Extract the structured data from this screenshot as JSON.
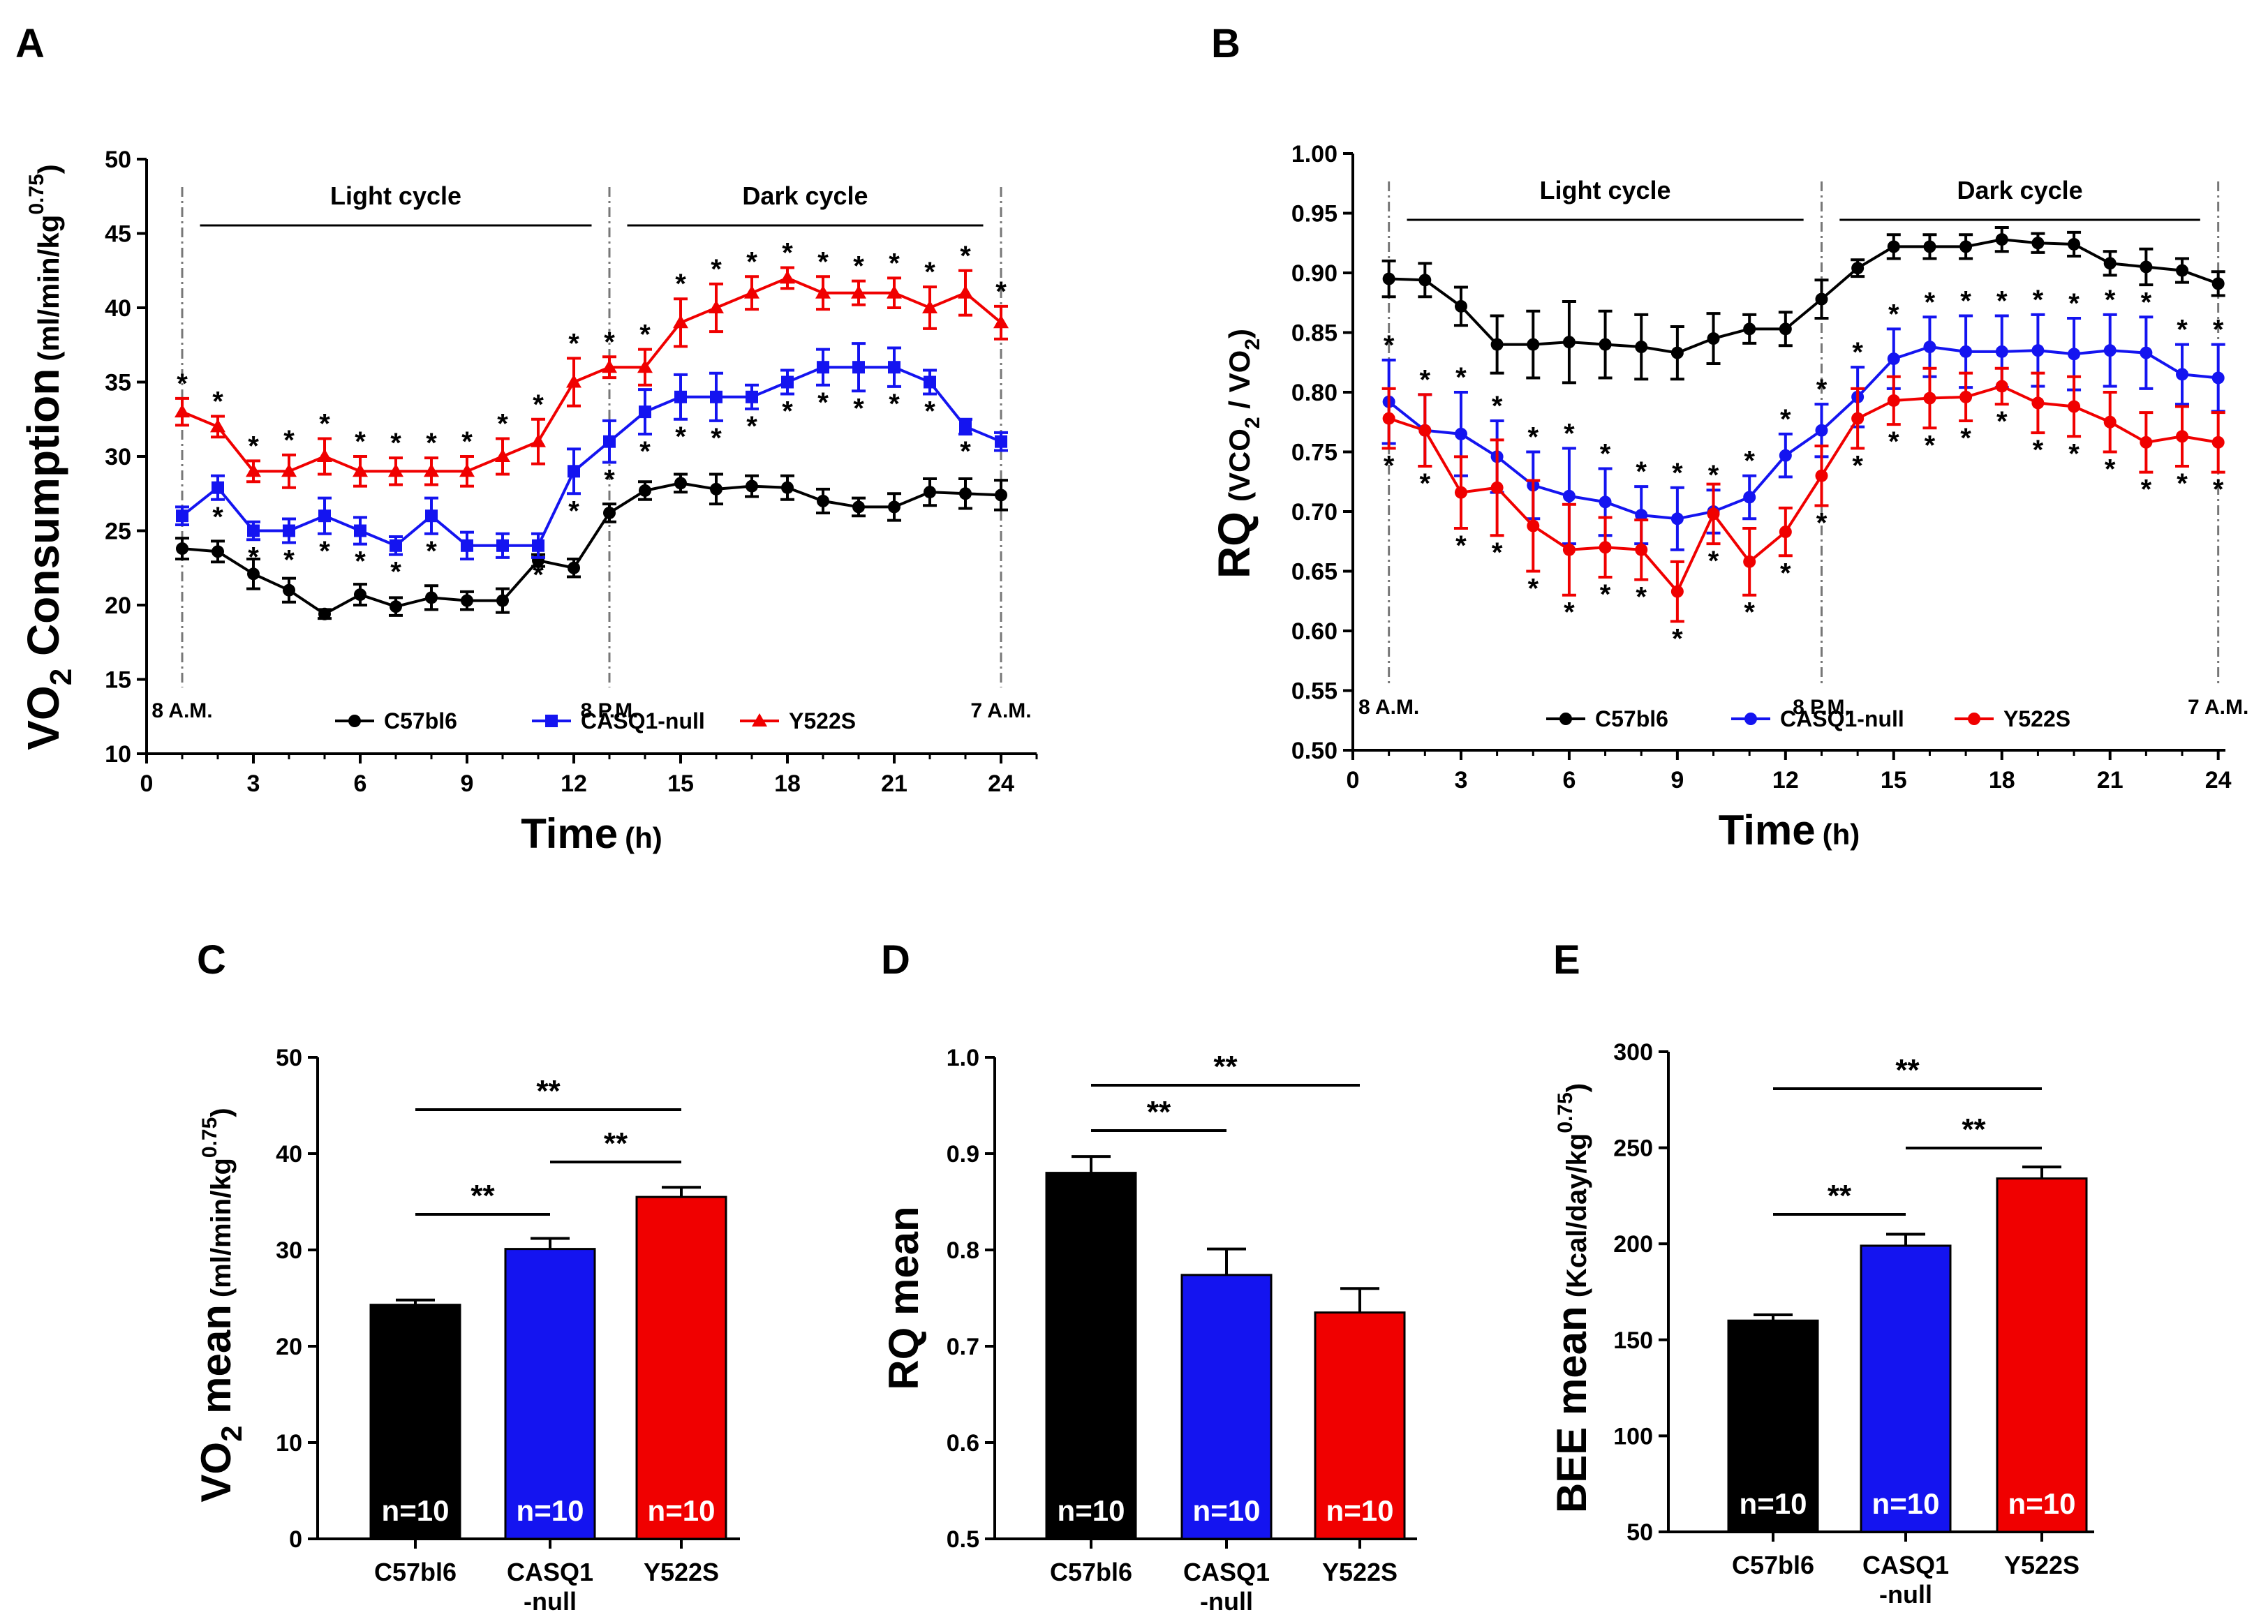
{
  "figure": {
    "colors": {
      "C57bl6": "#000000",
      "CASQ1-null": "#1414f0",
      "Y522S": "#f00000",
      "axis": "#000000"
    }
  },
  "chart_data": [
    {
      "panel": "A",
      "type": "line",
      "ylabel_main": "VO",
      "ylabel_sub": "2",
      "ylabel_rest": " Consumption",
      "ylabel_unit": "(ml/min/kg",
      "ylabel_unit_sup": "0.75",
      "ylabel_unit_close": ")",
      "xlabel": "Time",
      "xlabel_unit": "(h)",
      "xlim": [
        0,
        25
      ],
      "ylim": [
        10,
        50
      ],
      "xticks": [
        0,
        3,
        6,
        9,
        12,
        15,
        18,
        21,
        24
      ],
      "yticks": [
        10,
        15,
        20,
        25,
        30,
        35,
        40,
        45,
        50
      ],
      "cycle_labels": [
        {
          "text": "Light cycle",
          "x_range": [
            1.5,
            12.5
          ]
        },
        {
          "text": "Dark cycle",
          "x_range": [
            13.5,
            23.5
          ]
        }
      ],
      "time_markers": [
        {
          "text": "8 A.M.",
          "x": 1
        },
        {
          "text": "8 P.M.",
          "x": 13
        },
        {
          "text": "7 A.M.",
          "x": 24
        }
      ],
      "legend": [
        "C57bl6",
        "CASQ1-null",
        "Y522S"
      ],
      "x": [
        1,
        2,
        3,
        4,
        5,
        6,
        7,
        8,
        9,
        10,
        11,
        12,
        13,
        14,
        15,
        16,
        17,
        18,
        19,
        20,
        21,
        22,
        23,
        24
      ],
      "series": [
        {
          "name": "C57bl6",
          "marker": "circle",
          "values": [
            23.8,
            23.6,
            22.1,
            21.0,
            19.4,
            20.7,
            19.9,
            20.5,
            20.3,
            20.3,
            23.0,
            22.5,
            26.2,
            27.7,
            28.2,
            27.8,
            28.0,
            27.9,
            27.0,
            26.6,
            26.6,
            27.6,
            27.5,
            27.4
          ],
          "errors": [
            0.7,
            0.7,
            1.0,
            0.8,
            0.3,
            0.7,
            0.6,
            0.8,
            0.6,
            0.8,
            0.4,
            0.6,
            0.6,
            0.6,
            0.6,
            1.0,
            0.7,
            0.8,
            0.8,
            0.6,
            0.9,
            0.9,
            1.0,
            1.0
          ],
          "stars_below": []
        },
        {
          "name": "CASQ1-null",
          "marker": "square",
          "values": [
            26.0,
            27.9,
            25.0,
            25.0,
            26.0,
            25.0,
            24.0,
            26.0,
            24.0,
            24.0,
            24.0,
            29.0,
            31.0,
            33.0,
            34.0,
            34.0,
            34.0,
            35.0,
            36.0,
            36.0,
            36.0,
            35.0,
            32.0,
            31.0
          ],
          "errors": [
            0.6,
            0.8,
            0.6,
            0.8,
            1.2,
            0.9,
            0.6,
            1.2,
            0.9,
            0.8,
            0.8,
            1.5,
            1.4,
            1.5,
            1.5,
            1.6,
            0.8,
            0.8,
            1.2,
            1.6,
            1.3,
            0.8,
            0.5,
            0.6
          ],
          "stars_below": [
            2,
            3,
            4,
            5,
            6,
            7,
            8,
            11,
            12,
            13,
            14,
            15,
            16,
            17,
            18,
            19,
            20,
            21,
            22,
            23
          ]
        },
        {
          "name": "Y522S",
          "marker": "triangle",
          "values": [
            33.0,
            32.0,
            29.0,
            29.0,
            30.0,
            29.0,
            29.0,
            29.0,
            29.0,
            30.0,
            31.0,
            35.0,
            36.0,
            36.0,
            39.0,
            40.0,
            41.0,
            42.0,
            41.0,
            41.0,
            41.0,
            40.0,
            41.0,
            39.0
          ],
          "errors": [
            0.9,
            0.7,
            0.7,
            1.1,
            1.2,
            1.0,
            0.9,
            0.9,
            1.0,
            1.2,
            1.5,
            1.6,
            0.7,
            1.2,
            1.6,
            1.6,
            1.1,
            0.7,
            1.1,
            0.8,
            1.0,
            1.4,
            1.5,
            1.1
          ],
          "stars_above": [
            1,
            2,
            3,
            4,
            5,
            6,
            7,
            8,
            9,
            10,
            11,
            12,
            13,
            14,
            15,
            16,
            17,
            18,
            19,
            20,
            21,
            22,
            23,
            24
          ]
        }
      ]
    },
    {
      "panel": "B",
      "type": "line",
      "ylabel_main": "RQ",
      "ylabel_unit": "(VCO",
      "ylabel_unit_sub": "2",
      "ylabel_unit_mid": " / VO",
      "ylabel_unit_sub2": "2",
      "ylabel_unit_close": ")",
      "xlabel": "Time",
      "xlabel_unit": "(h)",
      "xlim": [
        0,
        24.2
      ],
      "ylim": [
        0.5,
        1.0
      ],
      "xticks": [
        0,
        3,
        6,
        9,
        12,
        15,
        18,
        21,
        24
      ],
      "yticks": [
        "0.50",
        "0.55",
        "0.60",
        "0.65",
        "0.70",
        "0.75",
        "0.80",
        "0.85",
        "0.90",
        "0.95",
        "1.00"
      ],
      "cycle_labels": [
        {
          "text": "Light cycle",
          "x_range": [
            1.5,
            12.5
          ]
        },
        {
          "text": "Dark cycle",
          "x_range": [
            13.5,
            23.5
          ]
        }
      ],
      "time_markers": [
        {
          "text": "8 A.M.",
          "x": 1
        },
        {
          "text": "8 P.M.",
          "x": 13
        },
        {
          "text": "7 A.M.",
          "x": 24
        }
      ],
      "legend": [
        "C57bl6",
        "CASQ1-null",
        "Y522S"
      ],
      "x": [
        1,
        2,
        3,
        4,
        5,
        6,
        7,
        8,
        9,
        10,
        11,
        12,
        13,
        14,
        15,
        16,
        17,
        18,
        19,
        20,
        21,
        22,
        23,
        24
      ],
      "series": [
        {
          "name": "C57bl6",
          "marker": "circle",
          "values": [
            0.895,
            0.894,
            0.872,
            0.84,
            0.84,
            0.842,
            0.84,
            0.838,
            0.833,
            0.845,
            0.853,
            0.853,
            0.878,
            0.904,
            0.922,
            0.922,
            0.922,
            0.928,
            0.925,
            0.924,
            0.908,
            0.905,
            0.902,
            0.891
          ],
          "errors": [
            0.015,
            0.014,
            0.016,
            0.024,
            0.028,
            0.034,
            0.028,
            0.027,
            0.022,
            0.021,
            0.012,
            0.014,
            0.016,
            0.007,
            0.01,
            0.01,
            0.01,
            0.01,
            0.008,
            0.01,
            0.01,
            0.015,
            0.01,
            0.01
          ],
          "stars_below": []
        },
        {
          "name": "CASQ1-null",
          "marker": "circle",
          "values": [
            0.792,
            0.768,
            0.765,
            0.746,
            0.722,
            0.713,
            0.708,
            0.697,
            0.694,
            0.7,
            0.712,
            0.747,
            0.768,
            0.796,
            0.828,
            0.838,
            0.834,
            0.834,
            0.835,
            0.832,
            0.835,
            0.833,
            0.815,
            0.812
          ],
          "errors": [
            0.035,
            0.03,
            0.035,
            0.03,
            0.028,
            0.04,
            0.028,
            0.024,
            0.026,
            0.018,
            0.018,
            0.018,
            0.022,
            0.025,
            0.025,
            0.025,
            0.03,
            0.03,
            0.03,
            0.03,
            0.03,
            0.03,
            0.025,
            0.028
          ],
          "stars_above": [
            1,
            2,
            3,
            4,
            5,
            6,
            7,
            8,
            9,
            10,
            11,
            12,
            13,
            14,
            15,
            16,
            17,
            18,
            19,
            20,
            21,
            22,
            23,
            24
          ]
        },
        {
          "name": "Y522S",
          "marker": "circle",
          "values": [
            0.778,
            0.768,
            0.716,
            0.72,
            0.688,
            0.668,
            0.67,
            0.668,
            0.633,
            0.698,
            0.658,
            0.683,
            0.73,
            0.778,
            0.793,
            0.795,
            0.796,
            0.805,
            0.791,
            0.788,
            0.775,
            0.758,
            0.763,
            0.758
          ],
          "errors": [
            0.025,
            0.03,
            0.03,
            0.04,
            0.038,
            0.038,
            0.025,
            0.025,
            0.025,
            0.025,
            0.028,
            0.02,
            0.025,
            0.025,
            0.02,
            0.025,
            0.02,
            0.015,
            0.025,
            0.025,
            0.025,
            0.025,
            0.025,
            0.025
          ],
          "stars_below": [
            1,
            2,
            3,
            4,
            5,
            6,
            7,
            8,
            9,
            10,
            11,
            12,
            13,
            14,
            15,
            16,
            17,
            18,
            19,
            20,
            21,
            22,
            23,
            24
          ]
        }
      ]
    },
    {
      "panel": "C",
      "type": "bar",
      "ylabel_main": "VO",
      "ylabel_sub": "2",
      "ylabel_rest": " mean",
      "ylabel_unit": "(ml/min/kg",
      "ylabel_unit_sup": "0.75",
      "ylabel_unit_close": ")",
      "ylim": [
        0,
        50
      ],
      "yticks": [
        0,
        10,
        20,
        30,
        40,
        50
      ],
      "categories": [
        "C57bl6",
        "CASQ1",
        "Y522S"
      ],
      "categories_line2": [
        "",
        "-null",
        ""
      ],
      "series_names": [
        "C57bl6",
        "CASQ1-null",
        "Y522S"
      ],
      "values": [
        24.3,
        30.1,
        35.5
      ],
      "errors": [
        0.5,
        1.1,
        1.0
      ],
      "n_labels": [
        "n=10",
        "n=10",
        "n=10"
      ],
      "significance": [
        {
          "from": 0,
          "to": 1,
          "label": "**"
        },
        {
          "from": 1,
          "to": 2,
          "label": "**"
        },
        {
          "from": 0,
          "to": 2,
          "label": "**"
        }
      ]
    },
    {
      "panel": "D",
      "type": "bar",
      "ylabel_main": "RQ mean",
      "ylim": [
        0.5,
        1.0
      ],
      "yticks": [
        "0.5",
        "0.6",
        "0.7",
        "0.8",
        "0.9",
        "1.0"
      ],
      "categories": [
        "C57bl6",
        "CASQ1",
        "Y522S"
      ],
      "categories_line2": [
        "",
        "-null",
        ""
      ],
      "series_names": [
        "C57bl6",
        "CASQ1-null",
        "Y522S"
      ],
      "values": [
        0.88,
        0.774,
        0.735
      ],
      "errors": [
        0.017,
        0.027,
        0.025
      ],
      "n_labels": [
        "n=10",
        "n=10",
        "n=10"
      ],
      "significance": [
        {
          "from": 0,
          "to": 1,
          "label": "**"
        },
        {
          "from": 0,
          "to": 2,
          "label": "**"
        }
      ]
    },
    {
      "panel": "E",
      "type": "bar",
      "ylabel_main": "BEE mean",
      "ylabel_unit": "(Kcal/day/kg",
      "ylabel_unit_sup": "0.75",
      "ylabel_unit_close": ")",
      "ylim": [
        50,
        300
      ],
      "yticks": [
        50,
        100,
        150,
        200,
        250,
        300
      ],
      "categories": [
        "C57bl6",
        "CASQ1",
        "Y522S"
      ],
      "categories_line2": [
        "",
        "-null",
        ""
      ],
      "series_names": [
        "C57bl6",
        "CASQ1-null",
        "Y522S"
      ],
      "values": [
        160,
        199,
        234
      ],
      "errors": [
        3,
        6,
        6
      ],
      "n_labels": [
        "n=10",
        "n=10",
        "n=10"
      ],
      "significance": [
        {
          "from": 0,
          "to": 1,
          "label": "**"
        },
        {
          "from": 1,
          "to": 2,
          "label": "**"
        },
        {
          "from": 0,
          "to": 2,
          "label": "**"
        }
      ]
    }
  ]
}
